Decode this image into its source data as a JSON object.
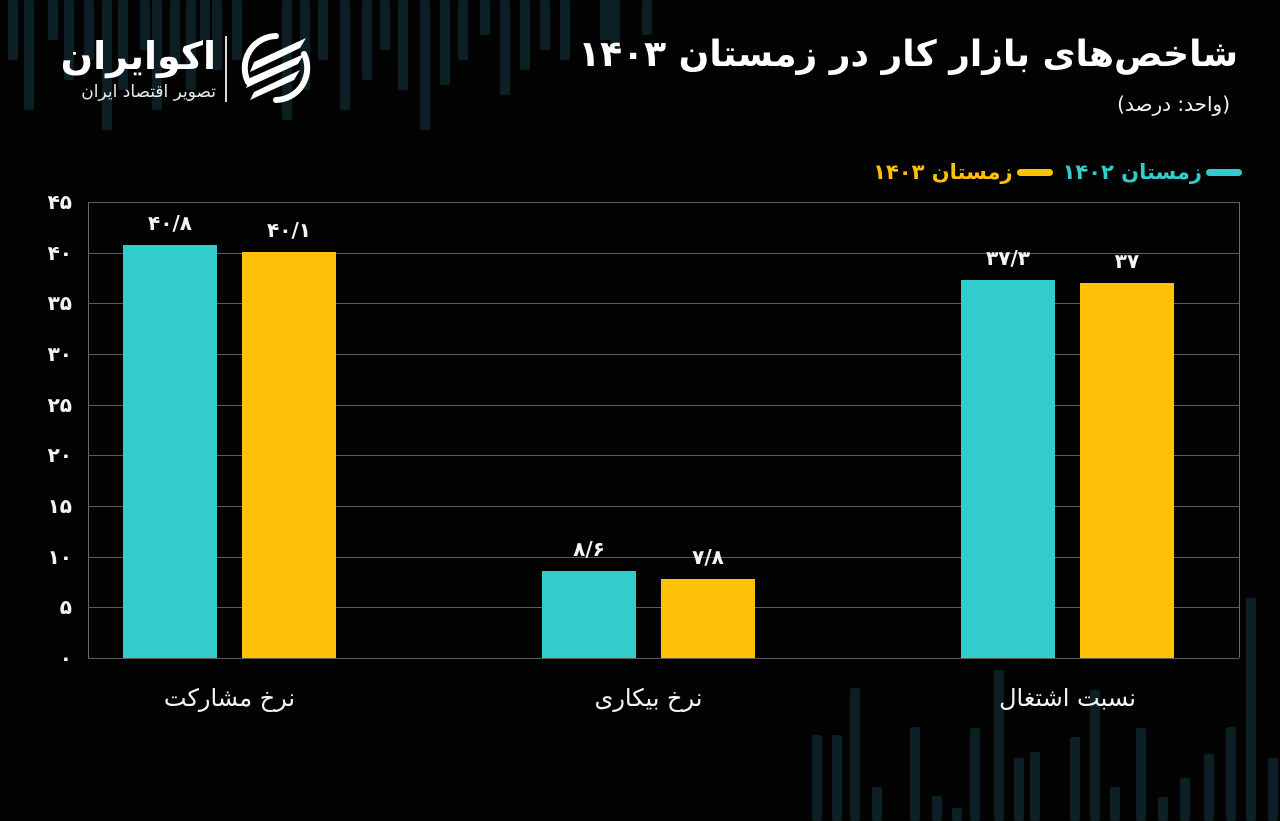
{
  "brand": {
    "name": "اکوایران",
    "tagline": "تصویر اقتصاد ایران"
  },
  "header": {
    "title": "شاخص‌های بازار کار در زمستان ۱۴۰۳",
    "subtitle": "(واحد: درصد)"
  },
  "legend": [
    {
      "label": "زمستان ۱۴۰۳",
      "color": "#FFC107"
    },
    {
      "label": "زمستان ۱۴۰۲",
      "color": "#33CCCC"
    }
  ],
  "colors": {
    "background": "#030303",
    "series_1402": "#33CCCC",
    "series_1403": "#FFC107",
    "grid": "#5c5c5c"
  },
  "y_axis": {
    "ticks": [
      "۰",
      "۵",
      "۱۰",
      "۱۵",
      "۲۰",
      "۲۵",
      "۳۰",
      "۳۵",
      "۴۰",
      "۴۵"
    ]
  },
  "categories": [
    {
      "label": "نرخ مشارکت",
      "bars": [
        {
          "series": "زمستان ۱۴۰۲",
          "value": 40.8,
          "label": "۴۰/۸"
        },
        {
          "series": "زمستان ۱۴۰۳",
          "value": 40.1,
          "label": "۴۰/۱"
        }
      ]
    },
    {
      "label": "نرخ بیکاری",
      "bars": [
        {
          "series": "زمستان ۱۴۰۲",
          "value": 8.6,
          "label": "۸/۶"
        },
        {
          "series": "زمستان ۱۴۰۳",
          "value": 7.8,
          "label": "۷/۸"
        }
      ]
    },
    {
      "label": "نسبت اشتغال",
      "bars": [
        {
          "series": "زمستان ۱۴۰۲",
          "value": 37.3,
          "label": "۳۷/۳"
        },
        {
          "series": "زمستان ۱۴۰۳",
          "value": 37.0,
          "label": "۳۷"
        }
      ]
    }
  ],
  "chart_data": {
    "type": "bar",
    "title": "شاخص‌های بازار کار در زمستان ۱۴۰۳",
    "subtitle": "(واحد: درصد)",
    "xlabel": "",
    "ylabel": "درصد",
    "categories": [
      "نرخ مشارکت",
      "نرخ بیکاری",
      "نسبت اشتغال"
    ],
    "series": [
      {
        "name": "زمستان ۱۴۰۲",
        "color": "#33CCCC",
        "values": [
          40.8,
          8.6,
          37.3
        ]
      },
      {
        "name": "زمستان ۱۴۰۳",
        "color": "#FFC107",
        "values": [
          40.1,
          7.8,
          37.0
        ]
      }
    ],
    "ylim": [
      0,
      45
    ],
    "yticks": [
      0,
      5,
      10,
      15,
      20,
      25,
      30,
      35,
      40,
      45
    ],
    "grid": true,
    "legend_position": "top-right",
    "data_labels": true
  }
}
